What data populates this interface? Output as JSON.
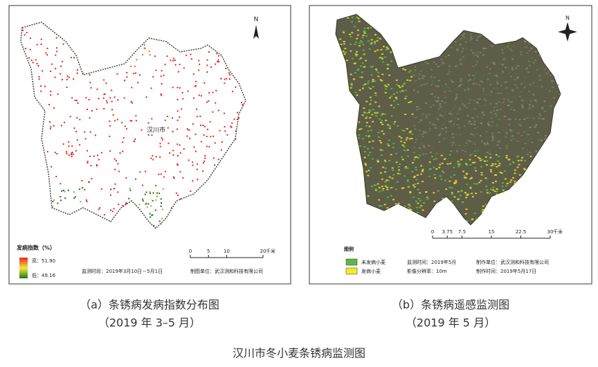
{
  "left_map": {
    "place_label": "汉川市",
    "north": "N",
    "legend": {
      "title": "发病指数（%）",
      "high": "高：51.90",
      "low": "低：49.16"
    },
    "scale": {
      "ticks": [
        "0",
        "5",
        "10",
        "20"
      ],
      "unit": "千米"
    },
    "footer": {
      "time": "监测时段：2019年3月10日－5月1日",
      "maker": "制图单位：武汉测和科技有限公司"
    }
  },
  "right_map": {
    "north": "N",
    "legend": {
      "title": "图例",
      "healthy": "未发病小麦",
      "diseased": "发病小麦"
    },
    "scale": {
      "ticks": [
        "0",
        "3.75",
        "7.5",
        "15",
        "22.5",
        "30"
      ],
      "unit": "千米"
    },
    "info": {
      "time": "监测时间：2019年5月",
      "resolution": "影像分辨率：10m",
      "maker": "制作单位：武汉测和科技有限公司",
      "date": "制作时间：2019年5月17日"
    }
  },
  "captions": {
    "left": [
      "（a）条锈病发病指数分布图",
      "（2019 年 3–5 月）"
    ],
    "right": [
      "（b）条锈病遥感监测图",
      "（2019 年 5 月）"
    ]
  },
  "title": "汉川市冬小麦条锈病监测图"
}
